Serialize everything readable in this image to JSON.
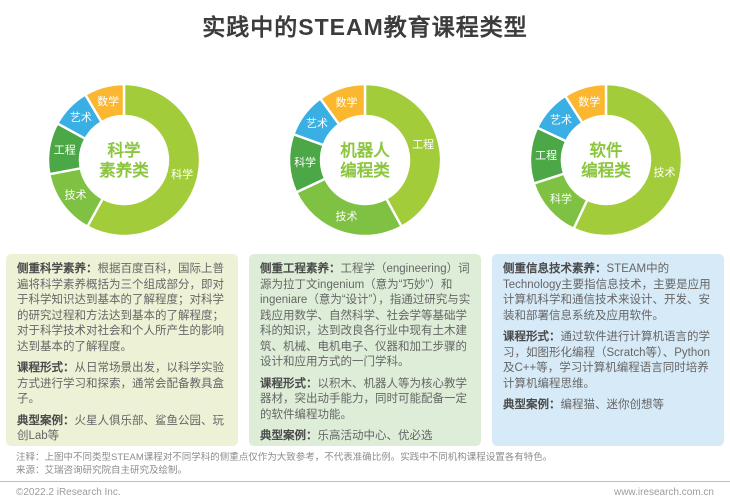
{
  "title": "实践中的STEAM教育课程类型",
  "chart_data": [
    {
      "type": "pie",
      "variant": "donut",
      "start_angle_deg": 0,
      "direction": "clockwise",
      "center_label": [
        "科学",
        "素养类"
      ],
      "segments": [
        {
          "label": "科学",
          "value": 58,
          "color": "#A3CC3B"
        },
        {
          "label": "技术",
          "value": 14,
          "color": "#7FC243"
        },
        {
          "label": "工程",
          "value": 11,
          "color": "#4CA746"
        },
        {
          "label": "艺术",
          "value": 8.5,
          "color": "#3AAFE4"
        },
        {
          "label": "数学",
          "value": 8.5,
          "color": "#FBB72F"
        }
      ]
    },
    {
      "type": "pie",
      "variant": "donut",
      "start_angle_deg": 0,
      "direction": "clockwise",
      "center_label": [
        "机器人",
        "编程类"
      ],
      "segments": [
        {
          "label": "工程",
          "value": 42,
          "color": "#A3CC3B"
        },
        {
          "label": "技术",
          "value": 26,
          "color": "#7FC243"
        },
        {
          "label": "科学",
          "value": 12.5,
          "color": "#4CA746"
        },
        {
          "label": "艺术",
          "value": 9.5,
          "color": "#3AAFE4"
        },
        {
          "label": "数学",
          "value": 10,
          "color": "#FBB72F"
        }
      ]
    },
    {
      "type": "pie",
      "variant": "donut",
      "start_angle_deg": 0,
      "direction": "clockwise",
      "center_label": [
        "软件",
        "编程类"
      ],
      "segments": [
        {
          "label": "技术",
          "value": 57,
          "color": "#A3CC3B"
        },
        {
          "label": "科学",
          "value": 13,
          "color": "#7FC243"
        },
        {
          "label": "工程",
          "value": 12,
          "color": "#4CA746"
        },
        {
          "label": "艺术",
          "value": 9,
          "color": "#3AAFE4"
        },
        {
          "label": "数学",
          "value": 9,
          "color": "#FBB72F"
        }
      ]
    }
  ],
  "boxes": [
    {
      "accent_bg": "#EDF2D7",
      "paragraphs": [
        {
          "lead": "侧重科学素养：",
          "text": "根据百度百科，国际上普遍将科学素养概括为三个组成部分，即对于科学知识达到基本的了解程度；对科学的研究过程和方法达到基本的了解程度；对于科学技术对社会和个人所产生的影响达到基本的了解程度。"
        },
        {
          "lead": "课程形式：",
          "text": "从日常场景出发，以科学实验方式进行学习和探索，通常会配备教具盒子。"
        },
        {
          "lead": "典型案例：",
          "text": "火星人俱乐部、鲨鱼公园、玩创Lab等"
        }
      ]
    },
    {
      "accent_bg": "#DEEDD8",
      "paragraphs": [
        {
          "lead": "侧重工程素养：",
          "text": "工程学（engineering）词源为拉丁文ingenium（意为“巧妙”）和ingeniare（意为“设计”），指通过研究与实践应用数学、自然科学、社会学等基础学科的知识，达到改良各行业中现有土木建筑、机械、电机电子、仪器和加工步骤的设计和应用方式的一门学科。"
        },
        {
          "lead": "课程形式：",
          "text": "以积木、机器人等为核心教学器材，突出动手能力，同时可能配备一定的软件编程功能。"
        },
        {
          "lead": "典型案例：",
          "text": "乐高活动中心、优必选"
        }
      ]
    },
    {
      "accent_bg": "#D7EAF7",
      "paragraphs": [
        {
          "lead": "侧重信息技术素养：",
          "text": "STEAM中的Technology主要指信息技术，主要是应用计算机科学和通信技术来设计、开发、安装和部署信息系统及应用软件。"
        },
        {
          "lead": "课程形式：",
          "text": "通过软件进行计算机语言的学习，如图形化编程（Scratch等）、Python及C++等，学习计算机编程语言同时培养计算机编程思维。"
        },
        {
          "lead": "典型案例：",
          "text": "编程猫、迷你创想等"
        }
      ]
    }
  ],
  "notes": {
    "annotation": "注释：上图中不同类型STEAM课程对不同学科的侧重点仅作为大致参考，不代表准确比例。实践中不同机构课程设置各有特色。",
    "source": "来源：艾瑞咨询研究院自主研究及绘制。"
  },
  "footer": {
    "copyright": "©2022.2 iResearch Inc.",
    "website": "www.iresearch.com.cn"
  },
  "colors": {
    "title_text": "#3C3C3C",
    "center_label_text": "#8CC63F",
    "segment_label_text": "#FFFFFF",
    "note_text": "#8C8C8C",
    "footer_text": "#9C9C9C"
  }
}
